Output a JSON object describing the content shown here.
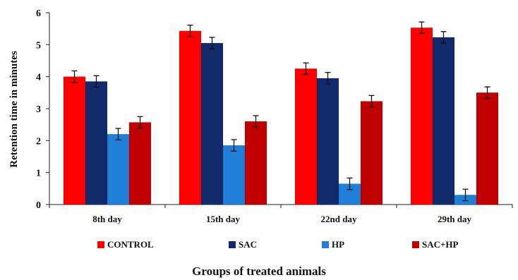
{
  "chart_data": {
    "type": "bar",
    "title": "",
    "xlabel": "Groups of treated animals",
    "ylabel": "Retention time in minutes",
    "ylim": [
      0,
      6
    ],
    "yticks": [
      "0",
      "1",
      "2",
      "3",
      "4",
      "5",
      "6"
    ],
    "categories": [
      "8th day",
      "15th day",
      "22nd day",
      "29th day"
    ],
    "series": [
      {
        "name": "CONTROL",
        "color": "#ff0000",
        "values": [
          4.0,
          5.43,
          4.25,
          5.53
        ],
        "errors": [
          0.18,
          0.18,
          0.18,
          0.18
        ]
      },
      {
        "name": "SAC",
        "color": "#102a6b",
        "values": [
          3.85,
          5.05,
          3.95,
          5.23
        ],
        "errors": [
          0.18,
          0.18,
          0.18,
          0.18
        ]
      },
      {
        "name": "HP",
        "color": "#1f7fd6",
        "values": [
          2.2,
          1.85,
          0.65,
          0.3
        ],
        "errors": [
          0.18,
          0.18,
          0.18,
          0.18
        ]
      },
      {
        "name": "SAC+HP",
        "color": "#c00000",
        "values": [
          2.57,
          2.6,
          3.23,
          3.5
        ],
        "errors": [
          0.18,
          0.18,
          0.18,
          0.18
        ]
      }
    ],
    "grid": false,
    "legend_position": "bottom"
  }
}
